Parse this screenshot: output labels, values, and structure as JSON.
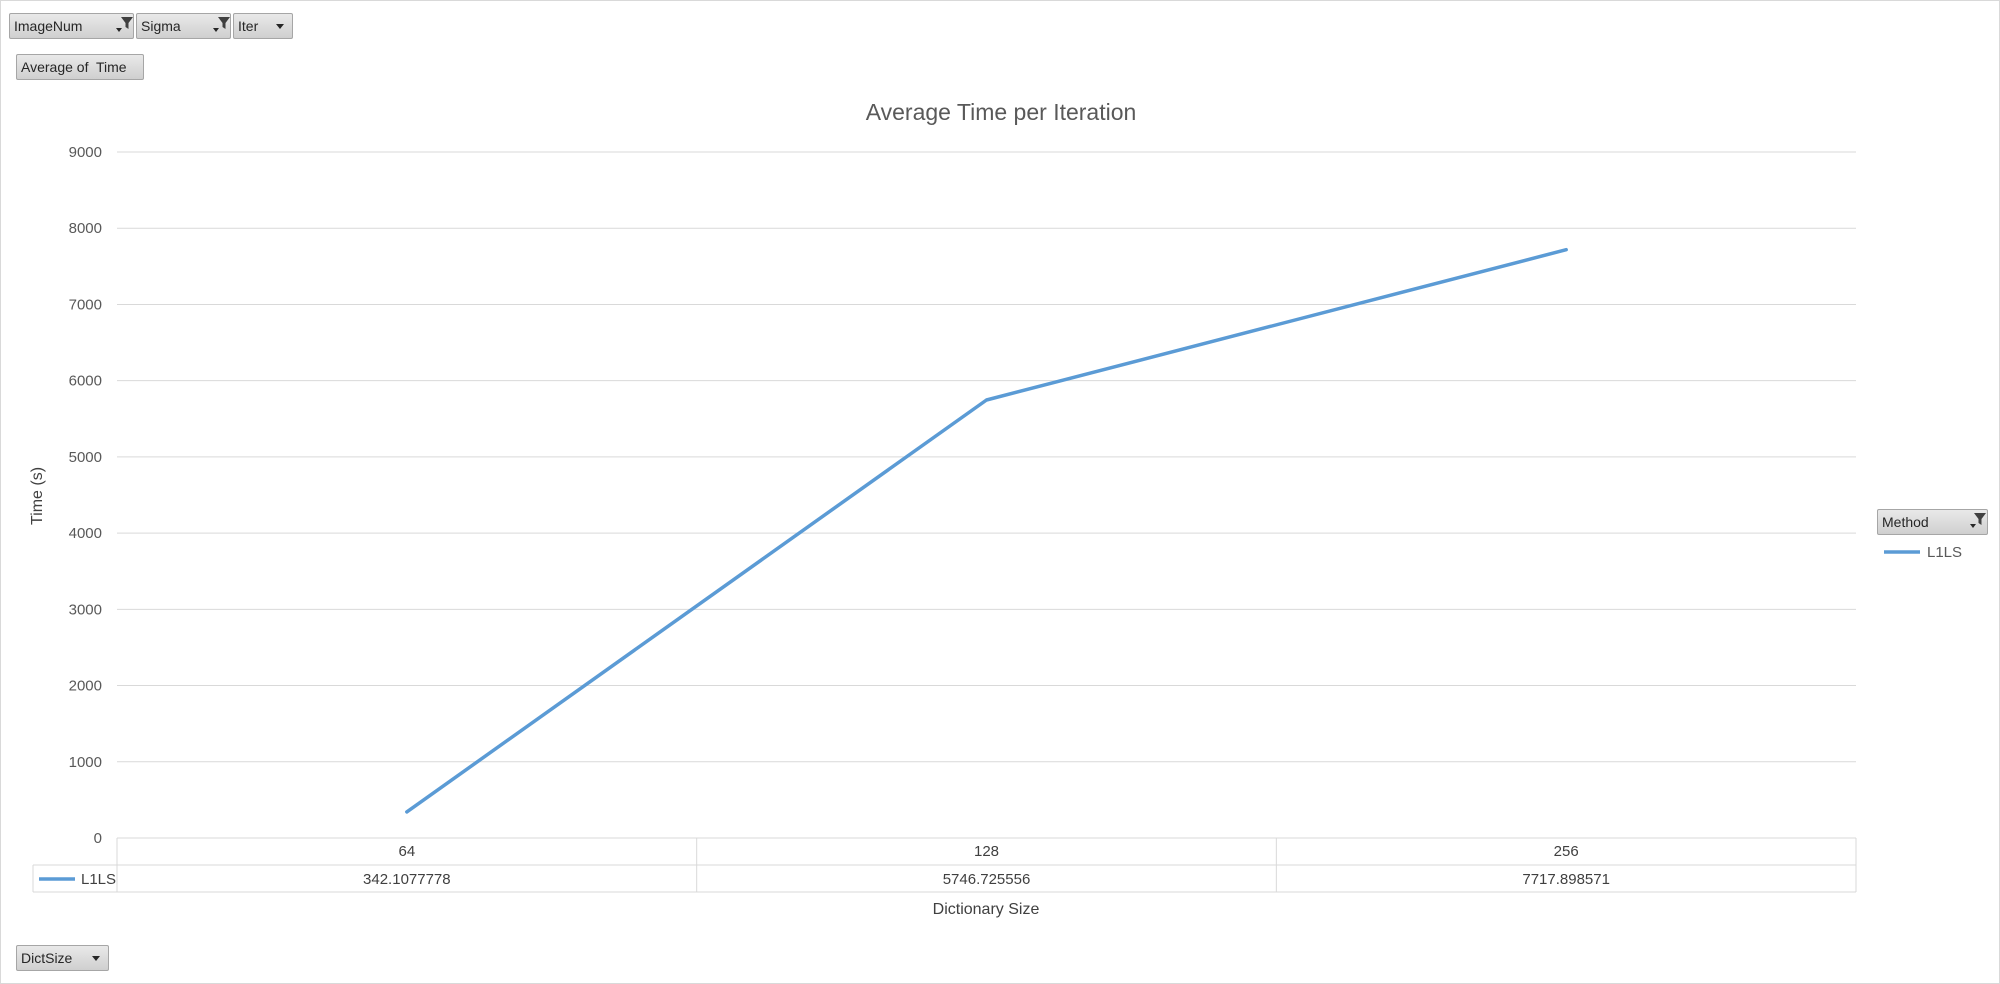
{
  "field_buttons": {
    "filters": [
      {
        "label": "ImageNum",
        "filtered": true
      },
      {
        "label": "Sigma",
        "filtered": true
      },
      {
        "label": "Iter",
        "filtered": false
      }
    ],
    "values": {
      "label": "Average of  Time"
    },
    "axis": {
      "label": "DictSize"
    },
    "legend": {
      "label": "Method",
      "filtered": true
    }
  },
  "colors": {
    "series": "#5b9bd5",
    "gridline": "#d9d9d9",
    "button_border": "#a6a6a6"
  },
  "chart_data": {
    "type": "line",
    "title": "Average Time per Iteration",
    "xlabel": "Dictionary Size",
    "ylabel": "Time (s)",
    "categories": [
      "64",
      "128",
      "256"
    ],
    "series": [
      {
        "name": "L1LS",
        "values": [
          342.1077778,
          5746.725556,
          7717.898571
        ],
        "value_labels": [
          "342.1077778",
          "5746.725556",
          "7717.898571"
        ]
      }
    ],
    "ylim": [
      0,
      9000
    ],
    "yticks": [
      0,
      1000,
      2000,
      3000,
      4000,
      5000,
      6000,
      7000,
      8000,
      9000
    ],
    "grid": true,
    "legend_position": "right",
    "data_table": true
  }
}
